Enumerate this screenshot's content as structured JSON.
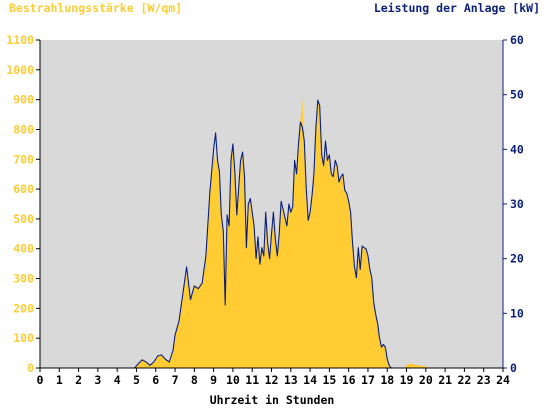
{
  "chart_data": {
    "type": "area",
    "title_left": "Bestrahlungsstärke [W/qm]",
    "title_right": "Leistung der Anlage [kW]",
    "xlabel": "Uhrzeit in Stunden",
    "xlim": [
      0,
      24
    ],
    "x_ticks": [
      "0",
      "1",
      "2",
      "3",
      "4",
      "5",
      "6",
      "7",
      "8",
      "9",
      "10",
      "11",
      "12",
      "13",
      "14",
      "15",
      "16",
      "17",
      "18",
      "19",
      "20",
      "21",
      "22",
      "23",
      "24"
    ],
    "y_left": {
      "lim": [
        0,
        1100
      ],
      "ticks": [
        "0",
        "100",
        "200",
        "300",
        "400",
        "500",
        "600",
        "700",
        "800",
        "900",
        "1000",
        "1100"
      ],
      "color": "#ffcc33"
    },
    "y_right": {
      "lim": [
        0,
        60
      ],
      "ticks": [
        "0",
        "10",
        "20",
        "30",
        "40",
        "50",
        "60"
      ],
      "color": "#0a1f7a"
    },
    "plot_background": "#d9d9d9",
    "series": [
      {
        "axis": "left",
        "render": "area",
        "color": "#ffcc33",
        "points": [
          [
            0,
            0
          ],
          [
            4.9,
            0
          ],
          [
            5.1,
            15
          ],
          [
            5.3,
            30
          ],
          [
            5.5,
            20
          ],
          [
            5.7,
            10
          ],
          [
            5.9,
            20
          ],
          [
            6.1,
            40
          ],
          [
            6.3,
            45
          ],
          [
            6.5,
            30
          ],
          [
            6.7,
            20
          ],
          [
            6.9,
            60
          ],
          [
            7.0,
            110
          ],
          [
            7.2,
            160
          ],
          [
            7.4,
            250
          ],
          [
            7.6,
            310
          ],
          [
            7.8,
            230
          ],
          [
            8.0,
            280
          ],
          [
            8.2,
            270
          ],
          [
            8.4,
            290
          ],
          [
            8.6,
            380
          ],
          [
            8.8,
            600
          ],
          [
            9.0,
            720
          ],
          [
            9.1,
            690
          ],
          [
            9.2,
            700
          ],
          [
            9.3,
            650
          ],
          [
            9.4,
            520
          ],
          [
            9.5,
            470
          ],
          [
            9.6,
            300
          ],
          [
            9.7,
            520
          ],
          [
            9.8,
            480
          ],
          [
            9.9,
            700
          ],
          [
            10.0,
            740
          ],
          [
            10.1,
            660
          ],
          [
            10.2,
            520
          ],
          [
            10.3,
            600
          ],
          [
            10.4,
            680
          ],
          [
            10.5,
            720
          ],
          [
            10.6,
            650
          ],
          [
            10.7,
            420
          ],
          [
            10.8,
            550
          ],
          [
            10.9,
            560
          ],
          [
            11.0,
            520
          ],
          [
            11.1,
            480
          ],
          [
            11.2,
            380
          ],
          [
            11.3,
            440
          ],
          [
            11.4,
            350
          ],
          [
            11.5,
            400
          ],
          [
            11.6,
            380
          ],
          [
            11.7,
            520
          ],
          [
            11.8,
            420
          ],
          [
            11.9,
            370
          ],
          [
            12.0,
            450
          ],
          [
            12.1,
            520
          ],
          [
            12.2,
            430
          ],
          [
            12.3,
            380
          ],
          [
            12.4,
            450
          ],
          [
            12.5,
            560
          ],
          [
            12.6,
            530
          ],
          [
            12.7,
            500
          ],
          [
            12.8,
            480
          ],
          [
            12.9,
            550
          ],
          [
            13.0,
            520
          ],
          [
            13.1,
            540
          ],
          [
            13.2,
            700
          ],
          [
            13.3,
            650
          ],
          [
            13.4,
            750
          ],
          [
            13.5,
            830
          ],
          [
            13.6,
            900
          ],
          [
            13.7,
            760
          ],
          [
            13.8,
            600
          ],
          [
            13.9,
            500
          ],
          [
            14.0,
            520
          ],
          [
            14.1,
            580
          ],
          [
            14.2,
            650
          ],
          [
            14.3,
            800
          ],
          [
            14.4,
            900
          ],
          [
            14.5,
            880
          ],
          [
            14.6,
            720
          ],
          [
            14.7,
            680
          ],
          [
            14.8,
            760
          ],
          [
            14.9,
            700
          ],
          [
            15.0,
            720
          ],
          [
            15.1,
            650
          ],
          [
            15.2,
            640
          ],
          [
            15.3,
            700
          ],
          [
            15.4,
            680
          ],
          [
            15.5,
            620
          ],
          [
            15.6,
            640
          ],
          [
            15.7,
            650
          ],
          [
            15.8,
            600
          ],
          [
            15.9,
            590
          ],
          [
            16.0,
            560
          ],
          [
            16.1,
            520
          ],
          [
            16.2,
            420
          ],
          [
            16.3,
            340
          ],
          [
            16.4,
            300
          ],
          [
            16.5,
            370
          ],
          [
            16.6,
            330
          ],
          [
            16.7,
            410
          ],
          [
            16.8,
            400
          ],
          [
            16.9,
            400
          ],
          [
            17.0,
            380
          ],
          [
            17.1,
            330
          ],
          [
            17.2,
            300
          ],
          [
            17.3,
            220
          ],
          [
            17.4,
            180
          ],
          [
            17.5,
            150
          ],
          [
            17.6,
            100
          ],
          [
            17.7,
            70
          ],
          [
            17.8,
            80
          ],
          [
            17.9,
            70
          ],
          [
            18.0,
            30
          ],
          [
            18.1,
            10
          ],
          [
            18.2,
            0
          ],
          [
            18.9,
            0
          ],
          [
            19.0,
            10
          ],
          [
            19.2,
            15
          ],
          [
            19.5,
            10
          ],
          [
            19.8,
            8
          ],
          [
            20.0,
            5
          ],
          [
            20.2,
            0
          ],
          [
            24,
            0
          ]
        ]
      },
      {
        "axis": "right",
        "render": "line",
        "color": "#0a1f7a",
        "points": [
          [
            0,
            0
          ],
          [
            4.9,
            0
          ],
          [
            5.1,
            0.8
          ],
          [
            5.3,
            1.5
          ],
          [
            5.5,
            1.1
          ],
          [
            5.7,
            0.5
          ],
          [
            5.9,
            1.1
          ],
          [
            6.1,
            2.2
          ],
          [
            6.3,
            2.4
          ],
          [
            6.5,
            1.6
          ],
          [
            6.7,
            1.1
          ],
          [
            6.9,
            3.3
          ],
          [
            7.0,
            6.0
          ],
          [
            7.2,
            8.5
          ],
          [
            7.4,
            13.5
          ],
          [
            7.6,
            18.5
          ],
          [
            7.8,
            12.5
          ],
          [
            8.0,
            15
          ],
          [
            8.2,
            14.5
          ],
          [
            8.4,
            15.5
          ],
          [
            8.6,
            20.5
          ],
          [
            8.8,
            32
          ],
          [
            9.0,
            40
          ],
          [
            9.1,
            43
          ],
          [
            9.2,
            38
          ],
          [
            9.3,
            36
          ],
          [
            9.4,
            28
          ],
          [
            9.5,
            25
          ],
          [
            9.6,
            11.5
          ],
          [
            9.7,
            28
          ],
          [
            9.8,
            26
          ],
          [
            9.9,
            38
          ],
          [
            10.0,
            41
          ],
          [
            10.1,
            36
          ],
          [
            10.2,
            28
          ],
          [
            10.3,
            33
          ],
          [
            10.4,
            38
          ],
          [
            10.5,
            39.5
          ],
          [
            10.6,
            35
          ],
          [
            10.7,
            22
          ],
          [
            10.8,
            30
          ],
          [
            10.9,
            31
          ],
          [
            11.0,
            28.5
          ],
          [
            11.1,
            26
          ],
          [
            11.2,
            20
          ],
          [
            11.3,
            24
          ],
          [
            11.4,
            19
          ],
          [
            11.5,
            22
          ],
          [
            11.6,
            20.5
          ],
          [
            11.7,
            28.5
          ],
          [
            11.8,
            23
          ],
          [
            11.9,
            20
          ],
          [
            12.0,
            24.5
          ],
          [
            12.1,
            28.5
          ],
          [
            12.2,
            23.5
          ],
          [
            12.3,
            20.5
          ],
          [
            12.4,
            24.5
          ],
          [
            12.5,
            30.5
          ],
          [
            12.6,
            29
          ],
          [
            12.7,
            27.5
          ],
          [
            12.8,
            26
          ],
          [
            12.9,
            30
          ],
          [
            13.0,
            28.5
          ],
          [
            13.1,
            29.5
          ],
          [
            13.2,
            38
          ],
          [
            13.3,
            35.5
          ],
          [
            13.4,
            41
          ],
          [
            13.5,
            45
          ],
          [
            13.6,
            44
          ],
          [
            13.7,
            41.5
          ],
          [
            13.8,
            33
          ],
          [
            13.9,
            27
          ],
          [
            14.0,
            28.5
          ],
          [
            14.1,
            31.5
          ],
          [
            14.2,
            35.5
          ],
          [
            14.3,
            44
          ],
          [
            14.4,
            49
          ],
          [
            14.5,
            48
          ],
          [
            14.6,
            39
          ],
          [
            14.7,
            37
          ],
          [
            14.8,
            41.5
          ],
          [
            14.9,
            38
          ],
          [
            15.0,
            39
          ],
          [
            15.1,
            35.5
          ],
          [
            15.2,
            35
          ],
          [
            15.3,
            38
          ],
          [
            15.4,
            37
          ],
          [
            15.5,
            34
          ],
          [
            15.6,
            35
          ],
          [
            15.7,
            35.5
          ],
          [
            15.8,
            32.5
          ],
          [
            15.9,
            32
          ],
          [
            16.0,
            30.5
          ],
          [
            16.1,
            28.5
          ],
          [
            16.2,
            23
          ],
          [
            16.3,
            18.5
          ],
          [
            16.4,
            16.5
          ],
          [
            16.5,
            22
          ],
          [
            16.6,
            18
          ],
          [
            16.7,
            22.3
          ],
          [
            16.8,
            22
          ],
          [
            16.9,
            21.8
          ],
          [
            17.0,
            20.5
          ],
          [
            17.1,
            18
          ],
          [
            17.2,
            16.5
          ],
          [
            17.3,
            12
          ],
          [
            17.4,
            9.8
          ],
          [
            17.5,
            8.2
          ],
          [
            17.6,
            5.5
          ],
          [
            17.7,
            3.8
          ],
          [
            17.8,
            4.3
          ],
          [
            17.9,
            3.8
          ],
          [
            18.0,
            1.6
          ],
          [
            18.1,
            0.5
          ],
          [
            18.2,
            0
          ],
          [
            24,
            0
          ]
        ]
      }
    ]
  }
}
